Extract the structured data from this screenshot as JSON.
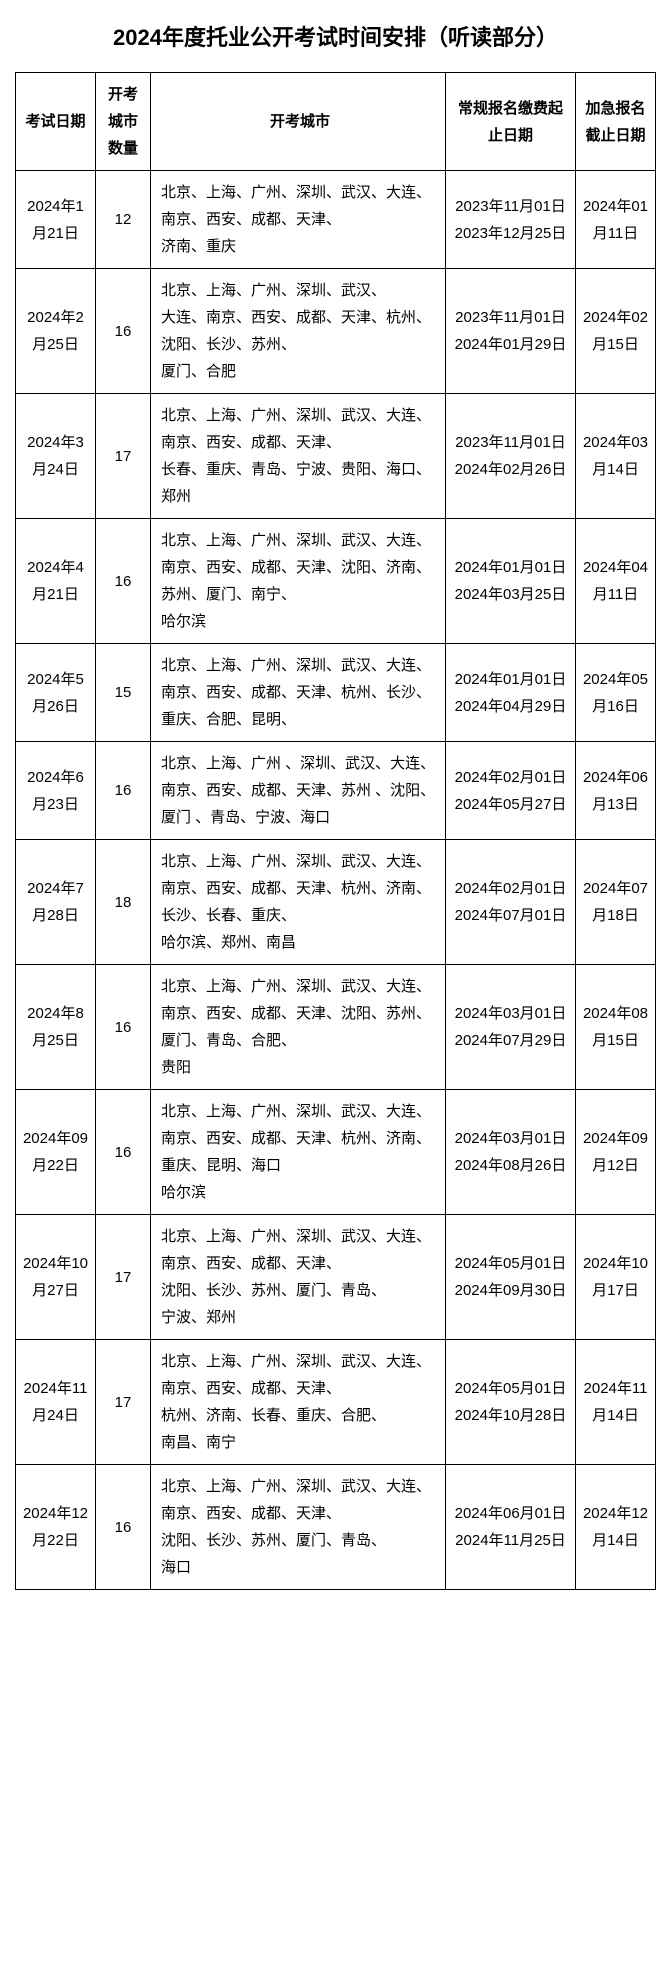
{
  "title": "2024年度托业公开考试时间安排（听读部分）",
  "headers": {
    "date": "考试日期",
    "count": "开考城市数量",
    "cities": "开考城市",
    "register": "常规报名缴费起止日期",
    "urgent": "加急报名截止日期"
  },
  "rows": [
    {
      "date": "2024年1月21日",
      "count": "12",
      "cities": "北京、上海、广州、深圳、武汉、大连、南京、西安、成都、天津、\n济南、重庆",
      "register": "2023年11月01日2023年12月25日",
      "urgent": "2024年01月11日"
    },
    {
      "date": "2024年2月25日",
      "count": "16",
      "cities": "北京、上海、广州、深圳、武汉、\n大连、南京、西安、成都、天津、杭州、沈阳、长沙、苏州、\n厦门、合肥",
      "register": "2023年11月01日2024年01月29日",
      "urgent": "2024年02月15日"
    },
    {
      "date": "2024年3月24日",
      "count": "17",
      "cities": "北京、上海、广州、深圳、武汉、大连、南京、西安、成都、天津、\n长春、重庆、青岛、宁波、贵阳、海口、郑州",
      "register": "2023年11月01日2024年02月26日",
      "urgent": "2024年03月14日"
    },
    {
      "date": "2024年4月21日",
      "count": "16",
      "cities": "北京、上海、广州、深圳、武汉、大连、南京、西安、成都、天津、沈阳、济南、苏州、厦门、南宁、\n哈尔滨",
      "register": "2024年01月01日2024年03月25日",
      "urgent": "2024年04月11日"
    },
    {
      "date": "2024年5月26日",
      "count": "15",
      "cities": "北京、上海、广州、深圳、武汉、大连、南京、西安、成都、天津、杭州、长沙、重庆、合肥、昆明、",
      "register": "2024年01月01日2024年04月29日",
      "urgent": "2024年05月16日"
    },
    {
      "date": "2024年6月23日",
      "count": "16",
      "cities": "北京、上海、广州 、深圳、武汉、大连、南京、西安、成都、天津、苏州 、沈阳、厦门 、青岛、宁波、海口",
      "register": "2024年02月01日2024年05月27日",
      "urgent": "2024年06月13日"
    },
    {
      "date": "2024年7月28日",
      "count": "18",
      "cities": "北京、上海、广州、深圳、武汉、大连、南京、西安、成都、天津、杭州、济南、长沙、长春、重庆、\n哈尔滨、郑州、南昌",
      "register": "2024年02月01日2024年07月01日",
      "urgent": "2024年07月18日"
    },
    {
      "date": "2024年8月25日",
      "count": "16",
      "cities": "北京、上海、广州、深圳、武汉、大连、南京、西安、成都、天津、沈阳、苏州、厦门、青岛、合肥、\n贵阳",
      "register": "2024年03月01日2024年07月29日",
      "urgent": "2024年08月15日"
    },
    {
      "date": "2024年09月22日",
      "count": "16",
      "cities": "北京、上海、广州、深圳、武汉、大连、南京、西安、成都、天津、杭州、济南、重庆、昆明、海口\n哈尔滨",
      "register": "2024年03月01日2024年08月26日",
      "urgent": "2024年09月12日"
    },
    {
      "date": "2024年10月27日",
      "count": "17",
      "cities": "北京、上海、广州、深圳、武汉、大连、南京、西安、成都、天津、\n沈阳、长沙、苏州、厦门、青岛、\n宁波、郑州",
      "register": "2024年05月01日2024年09月30日",
      "urgent": "2024年10月17日"
    },
    {
      "date": "2024年11月24日",
      "count": "17",
      "cities": "北京、上海、广州、深圳、武汉、大连、南京、西安、成都、天津、\n杭州、济南、长春、重庆、合肥、\n南昌、南宁",
      "register": "2024年05月01日2024年10月28日",
      "urgent": "2024年11月14日"
    },
    {
      "date": "2024年12月22日",
      "count": "16",
      "cities": "北京、上海、广州、深圳、武汉、大连、南京、西安、成都、天津、\n沈阳、长沙、苏州、厦门、青岛、\n海口",
      "register": "2024年06月01日2024年11月25日",
      "urgent": "2024年12月14日"
    }
  ]
}
